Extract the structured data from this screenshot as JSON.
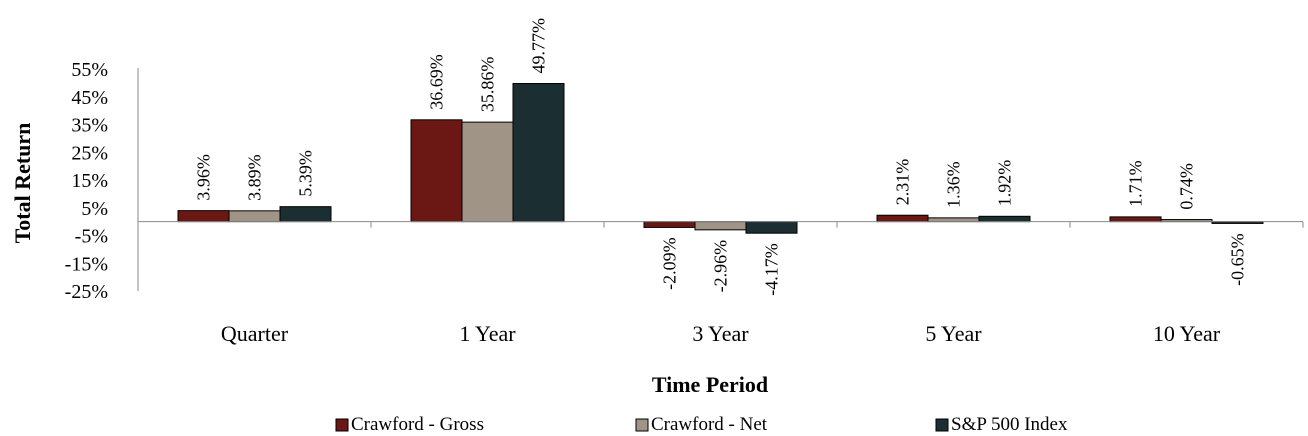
{
  "chart_data": {
    "type": "bar",
    "title": "",
    "xlabel": "Time Period",
    "ylabel": "Total Return",
    "ylim": [
      -25,
      55
    ],
    "yticks": [
      "55%",
      "45%",
      "35%",
      "25%",
      "15%",
      "5%",
      "-5%",
      "-15%",
      "-25%"
    ],
    "ytick_values": [
      55,
      45,
      35,
      25,
      15,
      5,
      -5,
      -15,
      -25
    ],
    "categories": [
      "Quarter",
      "1 Year",
      "3 Year",
      "5 Year",
      "10 Year"
    ],
    "series": [
      {
        "name": "Crawford - Gross",
        "color": "#6b1714",
        "values": [
          3.96,
          36.69,
          -2.09,
          2.31,
          1.71
        ],
        "labels": [
          "3.96%",
          "36.69%",
          "-2.09%",
          "2.31%",
          "1.71%"
        ]
      },
      {
        "name": "Crawford - Net",
        "color": "#a09486",
        "values": [
          3.89,
          35.86,
          -2.96,
          1.36,
          0.74
        ],
        "labels": [
          "3.89%",
          "35.86%",
          "-2.96%",
          "1.36%",
          "0.74%"
        ]
      },
      {
        "name": "S&P 500 Index",
        "color": "#1b2f33",
        "values": [
          5.39,
          49.77,
          -4.17,
          1.92,
          -0.65
        ],
        "labels": [
          "5.39%",
          "49.77%",
          "-4.17%",
          "1.92%",
          "-0.65%"
        ]
      }
    ],
    "grid": false,
    "legend_position": "bottom"
  }
}
